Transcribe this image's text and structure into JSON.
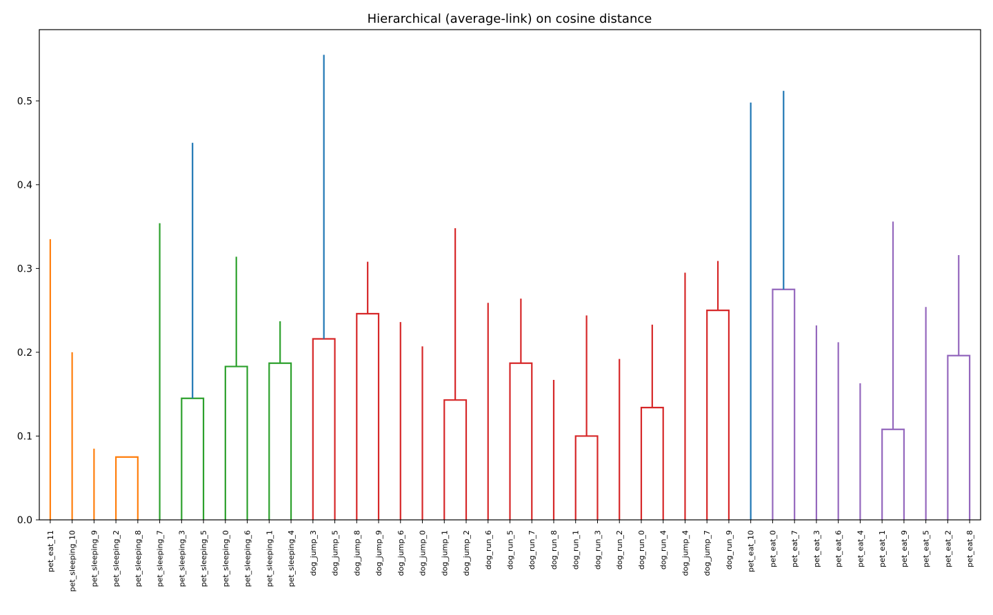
{
  "chart_data": {
    "type": "dendrogram",
    "title": "Hierarchical (average-link) on cosine distance",
    "xlabel": "",
    "ylabel": "",
    "ylim": [
      0,
      0.585
    ],
    "yticks": [
      0.0,
      0.1,
      0.2,
      0.3,
      0.4,
      0.5
    ],
    "grid": false,
    "leaves": [
      "pet_eat_11",
      "pet_sleeping_10",
      "pet_sleeping_9",
      "pet_sleeping_2",
      "pet_sleeping_8",
      "pet_sleeping_7",
      "pet_sleeping_3",
      "pet_sleeping_5",
      "pet_sleeping_0",
      "pet_sleeping_6",
      "pet_sleeping_1",
      "pet_sleeping_4",
      "dog_jump_3",
      "dog_jump_5",
      "dog_jump_8",
      "dog_jump_9",
      "dog_jump_6",
      "dog_jump_0",
      "dog_jump_1",
      "dog_jump_2",
      "dog_run_6",
      "dog_run_5",
      "dog_run_7",
      "dog_run_8",
      "dog_run_1",
      "dog_run_3",
      "dog_run_2",
      "dog_run_0",
      "dog_run_4",
      "dog_jump_4",
      "dog_jump_7",
      "dog_run_9",
      "pet_eat_10",
      "pet_eat_0",
      "pet_eat_7",
      "pet_eat_3",
      "pet_eat_6",
      "pet_eat_4",
      "pet_eat_1",
      "pet_eat_9",
      "pet_eat_5",
      "pet_eat_2",
      "pet_eat_8"
    ],
    "colors": {
      "C0": "#1f77b4",
      "C1": "#ff7f0e",
      "C2": "#2ca02c",
      "C3": "#d62728",
      "C4": "#9467bd"
    },
    "links": [
      {
        "a": "pet_sleeping_2",
        "b": "pet_sleeping_8",
        "h": 0.075,
        "c": "C1"
      },
      {
        "a": "pet_sleeping_9",
        "b": 1,
        "h": 0.085,
        "c": "C1"
      },
      {
        "a": "pet_sleeping_10",
        "b": 2,
        "h": 0.2,
        "c": "C1"
      },
      {
        "a": "pet_eat_11",
        "b": 3,
        "h": 0.335,
        "c": "C1"
      },
      {
        "a": "pet_sleeping_3",
        "b": "pet_sleeping_5",
        "h": 0.145,
        "c": "C2"
      },
      {
        "a": "pet_sleeping_0",
        "b": "pet_sleeping_6",
        "h": 0.183,
        "c": "C2"
      },
      {
        "a": "pet_sleeping_1",
        "b": "pet_sleeping_4",
        "h": 0.187,
        "c": "C2"
      },
      {
        "a": 6,
        "b": 7,
        "h": 0.237,
        "c": "C2"
      },
      {
        "a": 5,
        "b": 8,
        "h": 0.314,
        "c": "C2"
      },
      {
        "a": "pet_sleeping_7",
        "b": 9,
        "h": 0.354,
        "c": "C2"
      },
      {
        "a": 4,
        "b": 10,
        "h": 0.45,
        "c": "C0"
      },
      {
        "a": "dog_jump_3",
        "b": "dog_jump_5",
        "h": 0.216,
        "c": "C3"
      },
      {
        "a": "dog_jump_8",
        "b": "dog_jump_9",
        "h": 0.246,
        "c": "C3"
      },
      {
        "a": 12,
        "b": 13,
        "h": 0.308,
        "c": "C3"
      },
      {
        "a": "dog_jump_1",
        "b": "dog_jump_2",
        "h": 0.143,
        "c": "C3"
      },
      {
        "a": "dog_jump_0",
        "b": 15,
        "h": 0.207,
        "c": "C3"
      },
      {
        "a": "dog_jump_6",
        "b": 16,
        "h": 0.236,
        "c": "C3"
      },
      {
        "a": "dog_run_5",
        "b": "dog_run_7",
        "h": 0.187,
        "c": "C3"
      },
      {
        "a": "dog_run_1",
        "b": "dog_run_3",
        "h": 0.1,
        "c": "C3"
      },
      {
        "a": "dog_run_8",
        "b": 19,
        "h": 0.167,
        "c": "C3"
      },
      {
        "a": "dog_run_0",
        "b": "dog_run_4",
        "h": 0.134,
        "c": "C3"
      },
      {
        "a": "dog_run_2",
        "b": 21,
        "h": 0.192,
        "c": "C3"
      },
      {
        "a": 20,
        "b": 22,
        "h": 0.233,
        "c": "C3"
      },
      {
        "a": 18,
        "b": 23,
        "h": 0.244,
        "c": "C3"
      },
      {
        "a": "dog_run_6",
        "b": 24,
        "h": 0.259,
        "c": "C3"
      },
      {
        "a": 17,
        "b": 25,
        "h": 0.264,
        "c": "C3"
      },
      {
        "a": "dog_run_9",
        "b": "dog_jump_7",
        "h": 0.25,
        "c": "C3",
        "swap": true
      },
      {
        "a": "dog_jump_4",
        "b": 27,
        "h": 0.295,
        "c": "C3"
      },
      {
        "a": 26,
        "b": 28,
        "h": 0.309,
        "c": "C3"
      },
      {
        "a": 14,
        "b": 29,
        "h": 0.348,
        "c": "C3"
      },
      {
        "a": "pet_eat_0",
        "b": "pet_eat_7",
        "h": 0.275,
        "c": "C4"
      },
      {
        "a": "pet_eat_9",
        "b": "pet_eat_1",
        "h": 0.108,
        "c": "C4",
        "swap": true
      },
      {
        "a": "pet_eat_4",
        "b": 32,
        "h": 0.163,
        "c": "C4"
      },
      {
        "a": "pet_eat_6",
        "b": 33,
        "h": 0.212,
        "c": "C4"
      },
      {
        "a": "pet_eat_3",
        "b": 34,
        "h": 0.232,
        "c": "C4"
      },
      {
        "a": "pet_eat_2",
        "b": "pet_eat_8",
        "h": 0.196,
        "c": "C4"
      },
      {
        "a": "pet_eat_5",
        "b": 36,
        "h": 0.254,
        "c": "C4"
      },
      {
        "a": 35,
        "b": 37,
        "h": 0.316,
        "c": "C4"
      },
      {
        "a": 31,
        "b": 38,
        "h": 0.356,
        "c": "C4"
      },
      {
        "a": "pet_eat_10",
        "b": 39,
        "h": 0.498,
        "c": "C0"
      },
      {
        "a": 30,
        "b": 40,
        "h": 0.512,
        "c": "C0"
      },
      {
        "a": 11,
        "b": 41,
        "h": 0.555,
        "c": "C0"
      }
    ]
  }
}
